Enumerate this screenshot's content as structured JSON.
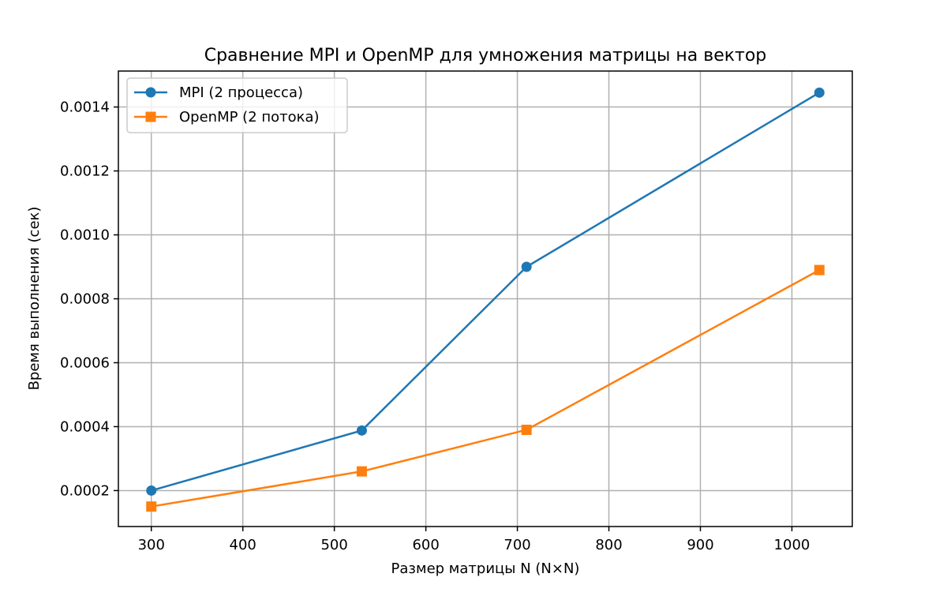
{
  "chart_data": {
    "type": "line",
    "title": "Сравнение MPI и OpenMP для умножения матрицы на вектор",
    "xlabel": "Размер матрицы N (N×N)",
    "ylabel": "Время выполнения (сек)",
    "x": [
      300,
      530,
      710,
      1030
    ],
    "xlim": [
      264,
      1066
    ],
    "ylim": [
      8.75e-05,
      0.0015125
    ],
    "xticks": [
      300,
      400,
      500,
      600,
      700,
      800,
      900,
      1000
    ],
    "xtick_labels": [
      "300",
      "400",
      "500",
      "600",
      "700",
      "800",
      "900",
      "1000"
    ],
    "yticks": [
      0.0002,
      0.0004,
      0.0006,
      0.0008,
      0.001,
      0.0012,
      0.0014
    ],
    "ytick_labels": [
      "0.0002",
      "0.0004",
      "0.0006",
      "0.0008",
      "0.0010",
      "0.0012",
      "0.0014"
    ],
    "grid": true,
    "legend_position": "top-left",
    "series": [
      {
        "name": "MPI (2 процесса)",
        "values": [
          0.0002,
          0.000388,
          0.0009,
          0.001445
        ],
        "color": "#1f77b4",
        "marker": "circle"
      },
      {
        "name": "OpenMP (2 потока)",
        "values": [
          0.00015,
          0.00026,
          0.00039,
          0.00089
        ],
        "color": "#ff7f0e",
        "marker": "square"
      }
    ]
  }
}
